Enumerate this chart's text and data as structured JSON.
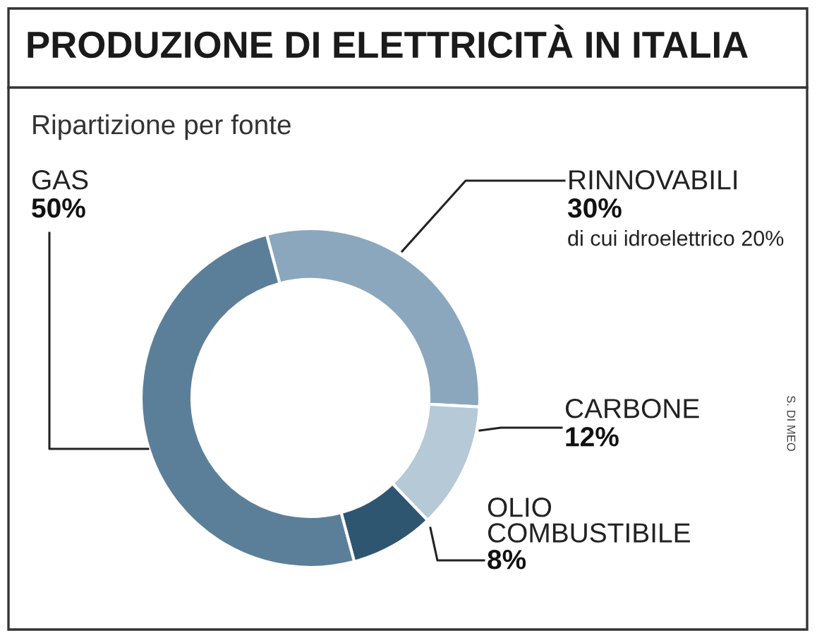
{
  "chart_data": {
    "type": "donut",
    "title": "PRODUZIONE DI ELETTRICITÀ IN ITALIA",
    "subtitle": "Ripartizione per fonte",
    "categories": [
      "RINNOVABILI",
      "CARBONE",
      "OLIO COMBUSTIBILE",
      "GAS"
    ],
    "values": [
      30,
      12,
      8,
      50
    ],
    "value_labels": [
      "30%",
      "12%",
      "8%",
      "50%"
    ],
    "colors": [
      "#8aa7bd",
      "#b5c9d6",
      "#2f5670",
      "#5b7f99"
    ],
    "annotations": [
      "di cui idroelettrico 20%",
      "S. DI MEO"
    ]
  }
}
